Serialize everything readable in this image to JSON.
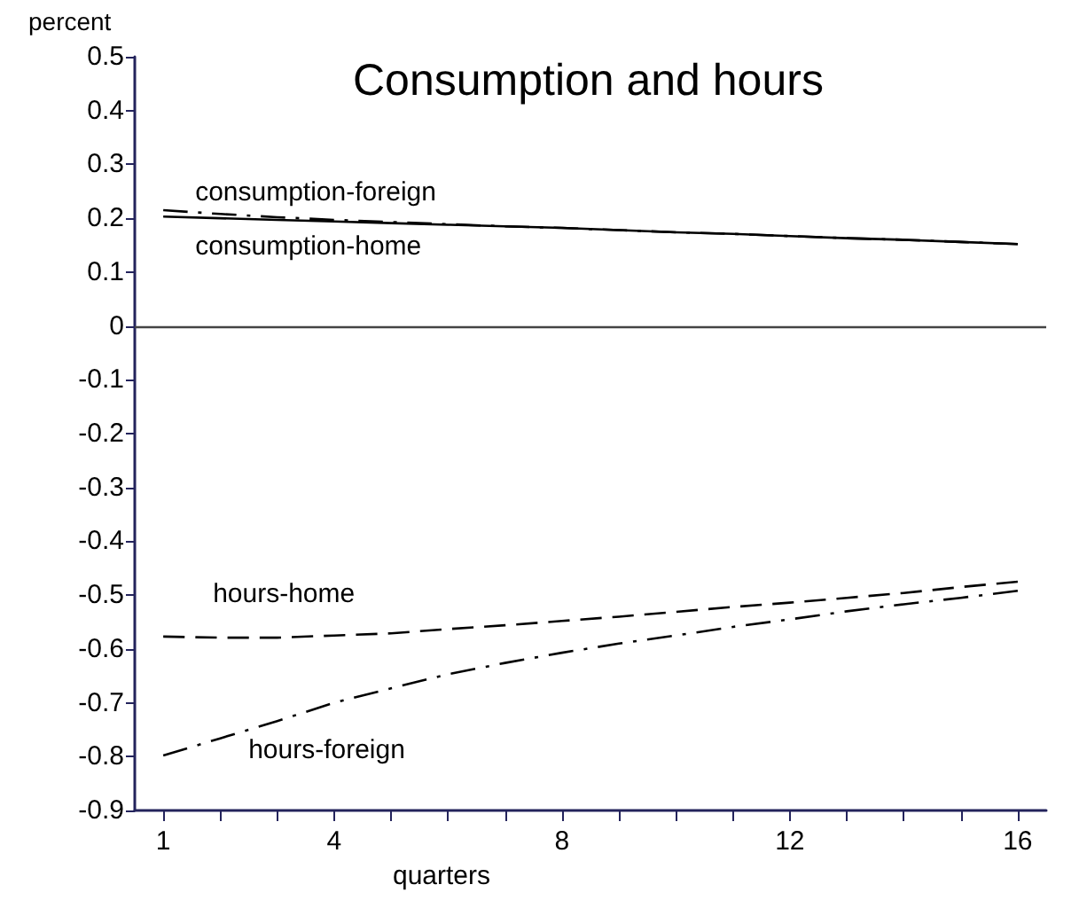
{
  "chart_data": {
    "type": "line",
    "title": "Consumption and hours",
    "xlabel": "quarters",
    "ylabel": "percent",
    "x": [
      1,
      2,
      3,
      4,
      5,
      6,
      7,
      8,
      9,
      10,
      11,
      12,
      13,
      14,
      15,
      16
    ],
    "series": [
      {
        "name": "consumption-home",
        "color": "#000000",
        "line_style": "solid",
        "values": [
          0.203,
          0.2,
          0.197,
          0.194,
          0.191,
          0.188,
          0.185,
          0.182,
          0.178,
          0.174,
          0.171,
          0.167,
          0.163,
          0.16,
          0.156,
          0.152
        ]
      },
      {
        "name": "consumption-foreign",
        "color": "#000000",
        "line_style": "dashdot",
        "values": [
          0.215,
          0.208,
          0.202,
          0.197,
          0.193,
          0.189,
          0.185,
          0.182,
          0.178,
          0.174,
          0.171,
          0.167,
          0.163,
          0.16,
          0.156,
          0.152
        ]
      },
      {
        "name": "hours-home",
        "color": "#000000",
        "line_style": "dashed",
        "values": [
          -0.577,
          -0.579,
          -0.579,
          -0.575,
          -0.571,
          -0.563,
          -0.556,
          -0.548,
          -0.54,
          -0.531,
          -0.522,
          -0.514,
          -0.505,
          -0.496,
          -0.485,
          -0.475
        ]
      },
      {
        "name": "hours-foreign",
        "color": "#000000",
        "line_style": "dashdot",
        "values": [
          -0.798,
          -0.766,
          -0.734,
          -0.7,
          -0.673,
          -0.647,
          -0.626,
          -0.607,
          -0.59,
          -0.575,
          -0.559,
          -0.545,
          -0.53,
          -0.517,
          -0.505,
          -0.492
        ]
      }
    ],
    "xlim": [
      0.5,
      16.5
    ],
    "xticks": [
      1,
      {
        "value": 2,
        "label": null
      },
      {
        "value": 3,
        "label": null
      },
      4,
      {
        "value": 5,
        "label": null
      },
      {
        "value": 6,
        "label": null
      },
      {
        "value": 7,
        "label": null
      },
      8,
      {
        "value": 9,
        "label": null
      },
      {
        "value": 10,
        "label": null
      },
      {
        "value": 11,
        "label": null
      },
      12,
      {
        "value": 13,
        "label": null
      },
      {
        "value": 14,
        "label": null
      },
      {
        "value": 15,
        "label": null
      },
      16
    ],
    "ylim": [
      -0.9,
      0.5
    ],
    "yticks": [
      -0.9,
      -0.8,
      -0.7,
      -0.6,
      -0.5,
      -0.4,
      -0.3,
      -0.2,
      -0.1,
      0,
      0.1,
      0.2,
      0.3,
      0.4,
      0.5
    ],
    "ref_lines": [
      {
        "axis": "y",
        "value": 0,
        "color": "#444444",
        "line_style": "solid"
      }
    ],
    "grid": false,
    "legend": false,
    "marker": "none"
  }
}
